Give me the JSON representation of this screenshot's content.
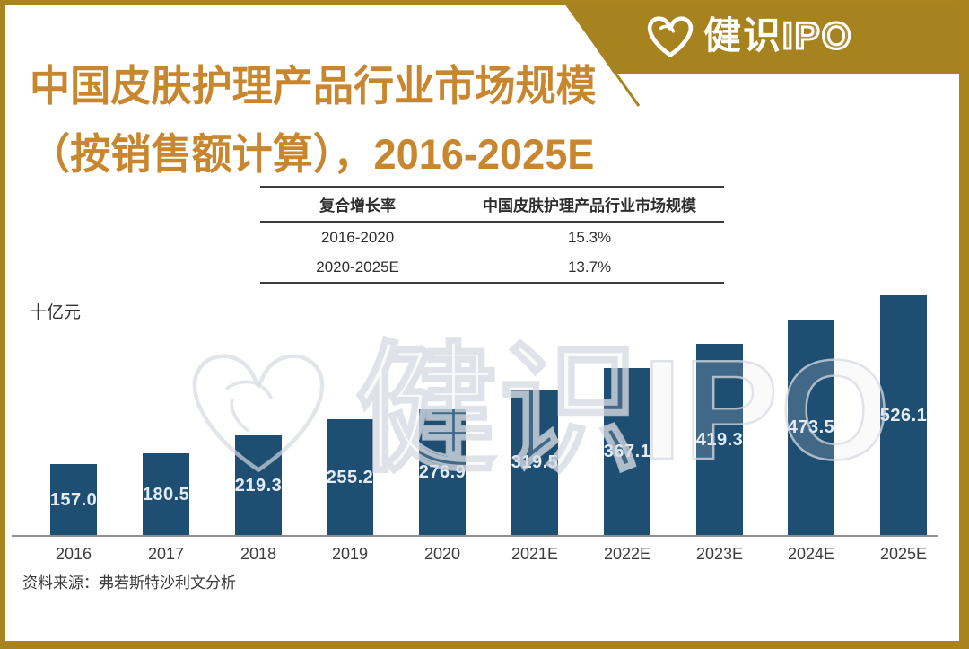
{
  "brand": {
    "logo_text_cn": "健识",
    "logo_text_latin": "IPO",
    "heart_icon": "heart-swirl-icon"
  },
  "title": {
    "line1": "中国皮肤护理产品行业市场规模",
    "line2": "（按销售额计算），2016-2025E"
  },
  "table": {
    "headers": [
      "复合增长率",
      "中国皮肤护理产品行业市场规模"
    ],
    "rows": [
      [
        "2016-2020",
        "15.3%"
      ],
      [
        "2020-2025E",
        "13.7%"
      ]
    ]
  },
  "chart_data": {
    "type": "bar",
    "title": "中国皮肤护理产品行业市场规模（按销售额计算），2016-2025E",
    "unit_label": "十亿元",
    "ylabel": "十亿元",
    "xlabel": "",
    "categories": [
      "2016",
      "2017",
      "2018",
      "2019",
      "2020",
      "2021E",
      "2022E",
      "2023E",
      "2024E",
      "2025E"
    ],
    "values": [
      157.0,
      180.5,
      219.3,
      255.2,
      276.9,
      319.5,
      367.1,
      419.3,
      473.5,
      526.1
    ],
    "value_labels": [
      "157.0",
      "180.5",
      "219.3",
      "255.2",
      "276.9",
      "319.5",
      "367.1",
      "419.3",
      "473.5",
      "526.1"
    ],
    "ylim": [
      0,
      560
    ],
    "grid": false,
    "legend": "none",
    "bar_color": "#1e4e72",
    "label_color": "#e3ecf4"
  },
  "source": "资料来源：弗若斯特沙利文分析",
  "watermark": {
    "text": "健识IPO"
  },
  "colors": {
    "gold_border": "#a9831e",
    "banner_gold": "#a7831f",
    "title_gold": "#c8872e",
    "bar_navy": "#1e4e72",
    "axis_gray": "#8f8f8f",
    "table_line": "#3c3c3c"
  }
}
